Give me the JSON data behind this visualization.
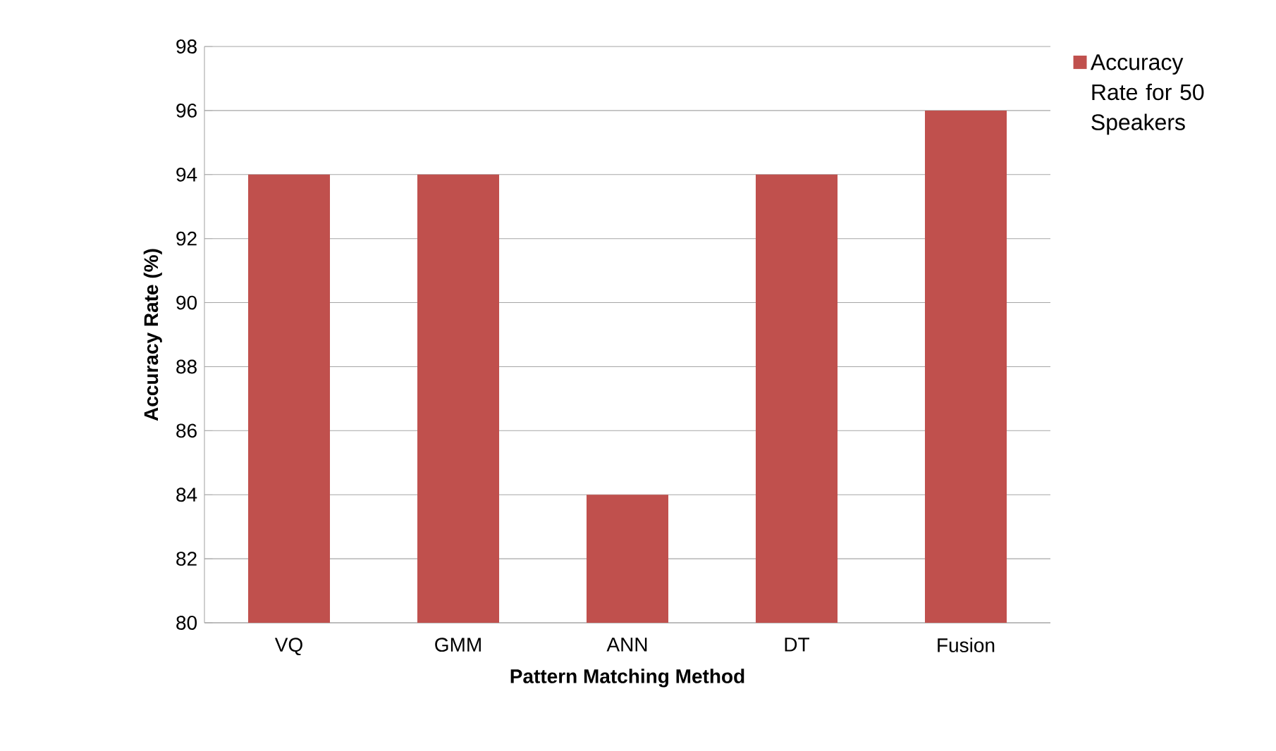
{
  "chart_data": {
    "type": "bar",
    "categories": [
      "VQ",
      "GMM",
      "ANN",
      "DT",
      "Fusion"
    ],
    "series": [
      {
        "name": "Accuracy Rate for 50 Speakers",
        "color": "#c0504d",
        "values": [
          94,
          94,
          84,
          94,
          96
        ]
      }
    ],
    "xlabel": "Pattern Matching Method",
    "ylabel": "Accuracy Rate (%)",
    "ylim": [
      80,
      98
    ],
    "yticks": [
      80,
      82,
      84,
      86,
      88,
      90,
      92,
      94,
      96,
      98
    ],
    "grid": "y",
    "legend": "right"
  }
}
